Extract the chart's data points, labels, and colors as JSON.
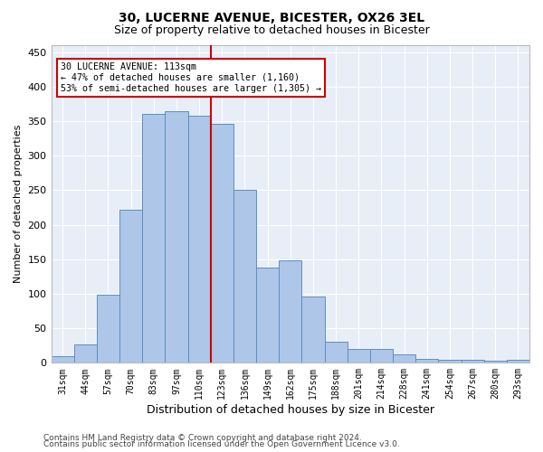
{
  "title1": "30, LUCERNE AVENUE, BICESTER, OX26 3EL",
  "title2": "Size of property relative to detached houses in Bicester",
  "xlabel": "Distribution of detached houses by size in Bicester",
  "ylabel": "Number of detached properties",
  "categories": [
    "31sqm",
    "44sqm",
    "57sqm",
    "70sqm",
    "83sqm",
    "97sqm",
    "110sqm",
    "123sqm",
    "136sqm",
    "149sqm",
    "162sqm",
    "175sqm",
    "188sqm",
    "201sqm",
    "214sqm",
    "228sqm",
    "241sqm",
    "254sqm",
    "267sqm",
    "280sqm",
    "293sqm"
  ],
  "values": [
    10,
    26,
    99,
    222,
    360,
    365,
    358,
    346,
    250,
    138,
    149,
    96,
    31,
    20,
    20,
    12,
    6,
    5,
    5,
    3,
    4
  ],
  "bar_color": "#aec6e8",
  "bar_edge_color": "#5a8fc2",
  "vline_x": 6.5,
  "vline_color": "#cc0000",
  "annotation_text": "30 LUCERNE AVENUE: 113sqm\n← 47% of detached houses are smaller (1,160)\n53% of semi-detached houses are larger (1,305) →",
  "annotation_box_color": "#ffffff",
  "annotation_box_edge_color": "#cc0000",
  "ylim": [
    0,
    460
  ],
  "yticks": [
    0,
    50,
    100,
    150,
    200,
    250,
    300,
    350,
    400,
    450
  ],
  "footer1": "Contains HM Land Registry data © Crown copyright and database right 2024.",
  "footer2": "Contains public sector information licensed under the Open Government Licence v3.0.",
  "bg_color": "#e8eef8",
  "grid_color": "#ffffff",
  "title1_fontsize": 10,
  "title2_fontsize": 9,
  "xlabel_fontsize": 9,
  "ylabel_fontsize": 8,
  "footer_fontsize": 6.5,
  "annotation_fontsize": 7.2
}
